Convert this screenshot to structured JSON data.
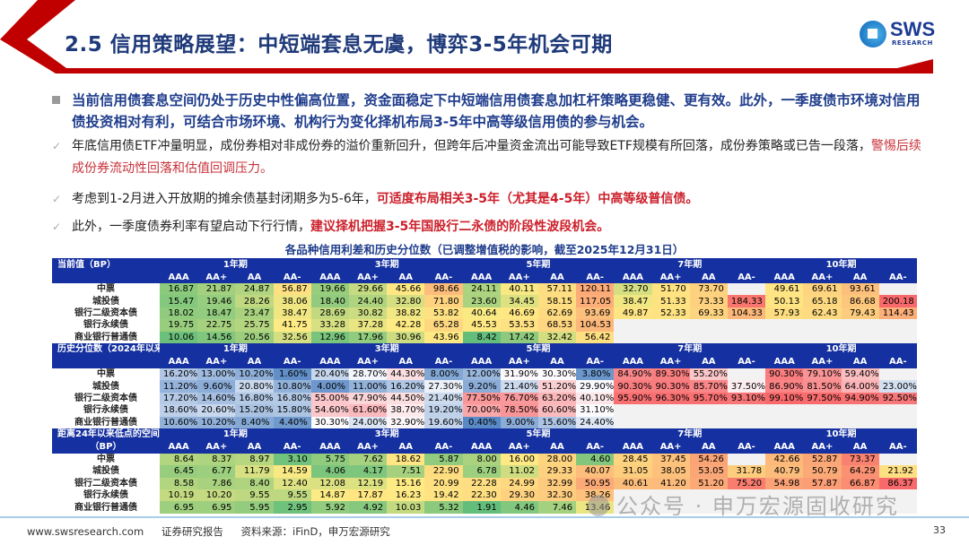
{
  "header": {
    "title": "2.5 信用策略展望：中短端套息无虞，博弈3-5年机会可期",
    "logo_text": "SWS",
    "logo_subtext": "RESEARCH",
    "accent_color": "#c00000"
  },
  "main_bullet": "当前信用债套息空间仍处于历史中性偏高位置，资金面稳定下中短端信用债套息加杠杆策略更稳健、更有效。此外，一季度债市环境对信用债投资相对有利，可结合市场环境、机构行为变化择机布局3-5年中高等级信用债的参与机会。",
  "sub_bullets": [
    {
      "text": "年底信用债ETF冲量明显，成份券相对非成份券的溢价重新回升，但跨年后冲量资金流出可能导致ETF规模有所回落，成份券策略或已告一段落，",
      "highlight": "警惕后续成份券流动性回落和估值回调压力。"
    },
    {
      "text": "考虑到1-2月进入开放期的摊余债基封闭期多为5-6年，",
      "highlight": "可适度布局相关3-5年（尤其是4-5年）中高等级普信债。"
    },
    {
      "text": "此外，一季度债券利率有望启动下行行情，",
      "highlight": "建议择机把握3-5年国股行二永债的阶段性波段机会。"
    }
  ],
  "table": {
    "caption": "各品种信用利差和历史分位数（已调整增值税的影响，截至2025年12月31日）",
    "tenors": [
      "1年期",
      "3年期",
      "5年期",
      "7年期",
      "10年期"
    ],
    "grades": [
      "AAA",
      "AA+",
      "AA",
      "AA-"
    ],
    "sections": [
      {
        "title": "当前值（BP）",
        "title2": "",
        "scale": [
          "#63be7b",
          "#ffeb84",
          "#f8696b"
        ],
        "rows": [
          {
            "name": "中票",
            "values": [
              "16.87",
              "21.87",
              "24.87",
              "56.87",
              "19.66",
              "29.66",
              "45.66",
              "98.66",
              "24.11",
              "40.11",
              "57.11",
              "120.11",
              "32.70",
              "51.70",
              "73.70",
              null,
              "49.61",
              "69.61",
              "93.61",
              null
            ]
          },
          {
            "name": "城投债",
            "values": [
              "15.47",
              "19.46",
              "28.26",
              "38.06",
              "18.40",
              "24.40",
              "32.80",
              "71.80",
              "23.60",
              "34.45",
              "58.15",
              "117.05",
              "38.47",
              "51.33",
              "73.33",
              "184.33",
              "50.13",
              "65.18",
              "86.68",
              "200.18"
            ]
          },
          {
            "name": "银行二级资本债",
            "values": [
              "18.02",
              "18.47",
              "23.47",
              "38.47",
              "28.69",
              "30.82",
              "38.82",
              "53.82",
              "40.64",
              "46.69",
              "62.69",
              "93.69",
              "49.87",
              "52.33",
              "69.33",
              "104.33",
              "57.93",
              "62.43",
              "79.43",
              "114.43"
            ]
          },
          {
            "name": "银行永续债",
            "values": [
              "19.75",
              "22.75",
              "25.75",
              "41.75",
              "33.28",
              "37.28",
              "42.28",
              "65.28",
              "45.53",
              "53.53",
              "68.53",
              "104.53",
              null,
              null,
              null,
              null,
              null,
              null,
              null,
              null
            ]
          },
          {
            "name": "商业银行普通债",
            "values": [
              "10.06",
              "14.56",
              "20.56",
              "32.56",
              "12.96",
              "17.96",
              "30.96",
              "43.96",
              "8.42",
              "17.42",
              "32.42",
              "56.42",
              null,
              null,
              null,
              null,
              null,
              null,
              null,
              null
            ]
          }
        ]
      },
      {
        "title": "历史分位数（2024年以来）",
        "title2": "",
        "scale": [
          "#5a8ac6",
          "#fcfcff",
          "#f8696b"
        ],
        "rows": [
          {
            "name": "中票",
            "values": [
              "16.20%",
              "13.00%",
              "10.20%",
              "1.60%",
              "20.40%",
              "28.70%",
              "44.30%",
              "8.00%",
              "12.00%",
              "31.90%",
              "30.30%",
              "3.80%",
              "84.90%",
              "89.30%",
              "55.20%",
              null,
              "90.30%",
              "79.10%",
              "59.40%",
              null
            ]
          },
          {
            "name": "城投债",
            "values": [
              "11.20%",
              "9.60%",
              "20.80%",
              "10.80%",
              "4.00%",
              "11.00%",
              "16.20%",
              "27.30%",
              "9.20%",
              "21.40%",
              "51.20%",
              "29.90%",
              "90.30%",
              "90.30%",
              "85.70%",
              "37.50%",
              "86.90%",
              "81.50%",
              "64.00%",
              "23.00%"
            ]
          },
          {
            "name": "银行二级资本债",
            "values": [
              "17.20%",
              "14.60%",
              "16.80%",
              "16.80%",
              "55.00%",
              "47.90%",
              "44.50%",
              "21.40%",
              "77.50%",
              "76.70%",
              "63.20%",
              "40.10%",
              "95.90%",
              "96.30%",
              "95.70%",
              "93.10%",
              "99.10%",
              "97.50%",
              "94.90%",
              "92.50%"
            ]
          },
          {
            "name": "银行永续债",
            "values": [
              "18.60%",
              "20.60%",
              "15.20%",
              "15.80%",
              "54.60%",
              "61.60%",
              "38.70%",
              "19.20%",
              "70.00%",
              "78.50%",
              "60.60%",
              "31.10%",
              null,
              null,
              null,
              null,
              null,
              null,
              null,
              null
            ]
          },
          {
            "name": "商业银行普通债",
            "values": [
              "10.60%",
              "10.20%",
              "8.40%",
              "4.40%",
              "30.30%",
              "24.00%",
              "32.90%",
              "19.60%",
              "0.40%",
              "9.00%",
              "15.60%",
              "24.40%",
              null,
              null,
              null,
              null,
              null,
              null,
              null,
              null
            ]
          }
        ]
      },
      {
        "title": "距离24年以来低点的空间",
        "title2": "（BP）",
        "scale": [
          "#63be7b",
          "#ffeb84",
          "#f8696b"
        ],
        "rows": [
          {
            "name": "中票",
            "values": [
              "8.64",
              "8.37",
              "8.97",
              "3.10",
              "5.75",
              "7.62",
              "18.62",
              "5.87",
              "8.00",
              "16.00",
              "28.00",
              "4.60",
              "28.45",
              "37.45",
              "54.26",
              null,
              "42.66",
              "52.87",
              "73.37",
              null
            ]
          },
          {
            "name": "城投债",
            "values": [
              "6.45",
              "6.77",
              "11.79",
              "14.59",
              "4.06",
              "4.17",
              "7.51",
              "22.90",
              "6.78",
              "11.02",
              "29.33",
              "40.07",
              "31.05",
              "38.05",
              "53.05",
              "31.78",
              "40.79",
              "50.79",
              "64.29",
              "21.92"
            ]
          },
          {
            "name": "银行二级资本债",
            "values": [
              "8.58",
              "7.86",
              "8.40",
              "12.40",
              "12.08",
              "12.19",
              "15.16",
              "20.99",
              "22.28",
              "24.99",
              "32.99",
              "50.95",
              "40.61",
              "41.20",
              "51.20",
              "75.20",
              "54.98",
              "57.87",
              "66.87",
              "86.37"
            ]
          },
          {
            "name": "银行永续债",
            "values": [
              "10.19",
              "10.20",
              "9.55",
              "9.55",
              "14.87",
              "17.87",
              "16.23",
              "19.42",
              "22.30",
              "29.30",
              "32.30",
              "38.26",
              null,
              null,
              null,
              null,
              null,
              null,
              null,
              null
            ]
          },
          {
            "name": "商业银行普通债",
            "values": [
              "6.95",
              "6.95",
              "5.95",
              "2.95",
              "5.92",
              "4.92",
              "10.03",
              "5.32",
              "1.91",
              "4.46",
              "7.46",
              "13.46",
              null,
              null,
              null,
              null,
              null,
              null,
              null,
              null
            ]
          }
        ]
      }
    ]
  },
  "footer": {
    "website": "www.swsresearch.com",
    "report_type": "证券研究报告",
    "source": "资料来源：iFinD，申万宏源研究",
    "page_number": "33"
  },
  "watermark": "公众号 · 申万宏源固收研究"
}
